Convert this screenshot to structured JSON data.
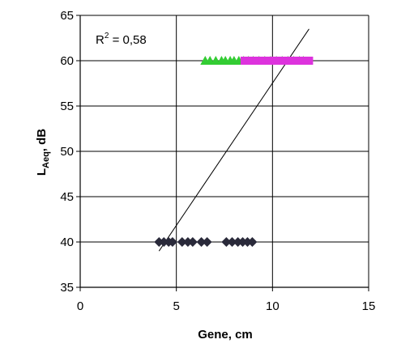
{
  "chart_data": {
    "type": "scatter",
    "title": "",
    "xlabel": "Gene, cm",
    "ylabel_main": "L",
    "ylabel_sub": "Aeq",
    "ylabel_unit": ", dB",
    "xlim": [
      0,
      15
    ],
    "ylim": [
      35,
      65
    ],
    "x_ticks": [
      "0",
      "5",
      "10",
      "15"
    ],
    "y_ticks": [
      "35",
      "40",
      "45",
      "50",
      "55",
      "60",
      "65"
    ],
    "grid": true,
    "annotation": {
      "r2_prefix": "R",
      "r2_power": "2",
      "r2_suffix": " = 0,58"
    },
    "trendline": {
      "x": [
        4.1,
        11.9
      ],
      "y": [
        39.0,
        63.5
      ]
    },
    "series": [
      {
        "marker": "diamond",
        "color": "#2a2a3a",
        "points": [
          [
            4.1,
            40
          ],
          [
            4.35,
            40
          ],
          [
            4.6,
            40
          ],
          [
            4.8,
            40
          ],
          [
            5.3,
            40
          ],
          [
            5.6,
            40
          ],
          [
            5.85,
            40
          ],
          [
            6.3,
            40
          ],
          [
            6.6,
            40
          ],
          [
            7.6,
            40
          ],
          [
            7.9,
            40
          ],
          [
            8.2,
            40
          ],
          [
            8.45,
            40
          ],
          [
            8.7,
            40
          ],
          [
            8.95,
            40
          ]
        ]
      },
      {
        "marker": "triangle",
        "color": "#33cc33",
        "points": [
          [
            6.5,
            60
          ],
          [
            6.75,
            60
          ],
          [
            7.05,
            60
          ],
          [
            7.35,
            60
          ],
          [
            7.55,
            60
          ],
          [
            7.8,
            60
          ],
          [
            8.0,
            60
          ],
          [
            8.25,
            60
          ],
          [
            8.5,
            60
          ],
          [
            8.75,
            60
          ],
          [
            9.0,
            60
          ],
          [
            9.3,
            60
          ],
          [
            9.6,
            60
          ],
          [
            9.9,
            60
          ],
          [
            10.2,
            60
          ],
          [
            10.5,
            60
          ],
          [
            10.8,
            60
          ],
          [
            11.1,
            60
          ],
          [
            11.4,
            60
          ],
          [
            11.6,
            60
          ]
        ]
      },
      {
        "marker": "square",
        "color": "#dd33dd",
        "points": [
          [
            8.55,
            60
          ],
          [
            8.85,
            60
          ],
          [
            9.15,
            60
          ],
          [
            9.5,
            60
          ],
          [
            9.85,
            60
          ],
          [
            10.2,
            60
          ],
          [
            10.55,
            60
          ],
          [
            10.9,
            60
          ],
          [
            11.25,
            60
          ],
          [
            11.6,
            60
          ],
          [
            11.9,
            60
          ]
        ]
      }
    ]
  }
}
